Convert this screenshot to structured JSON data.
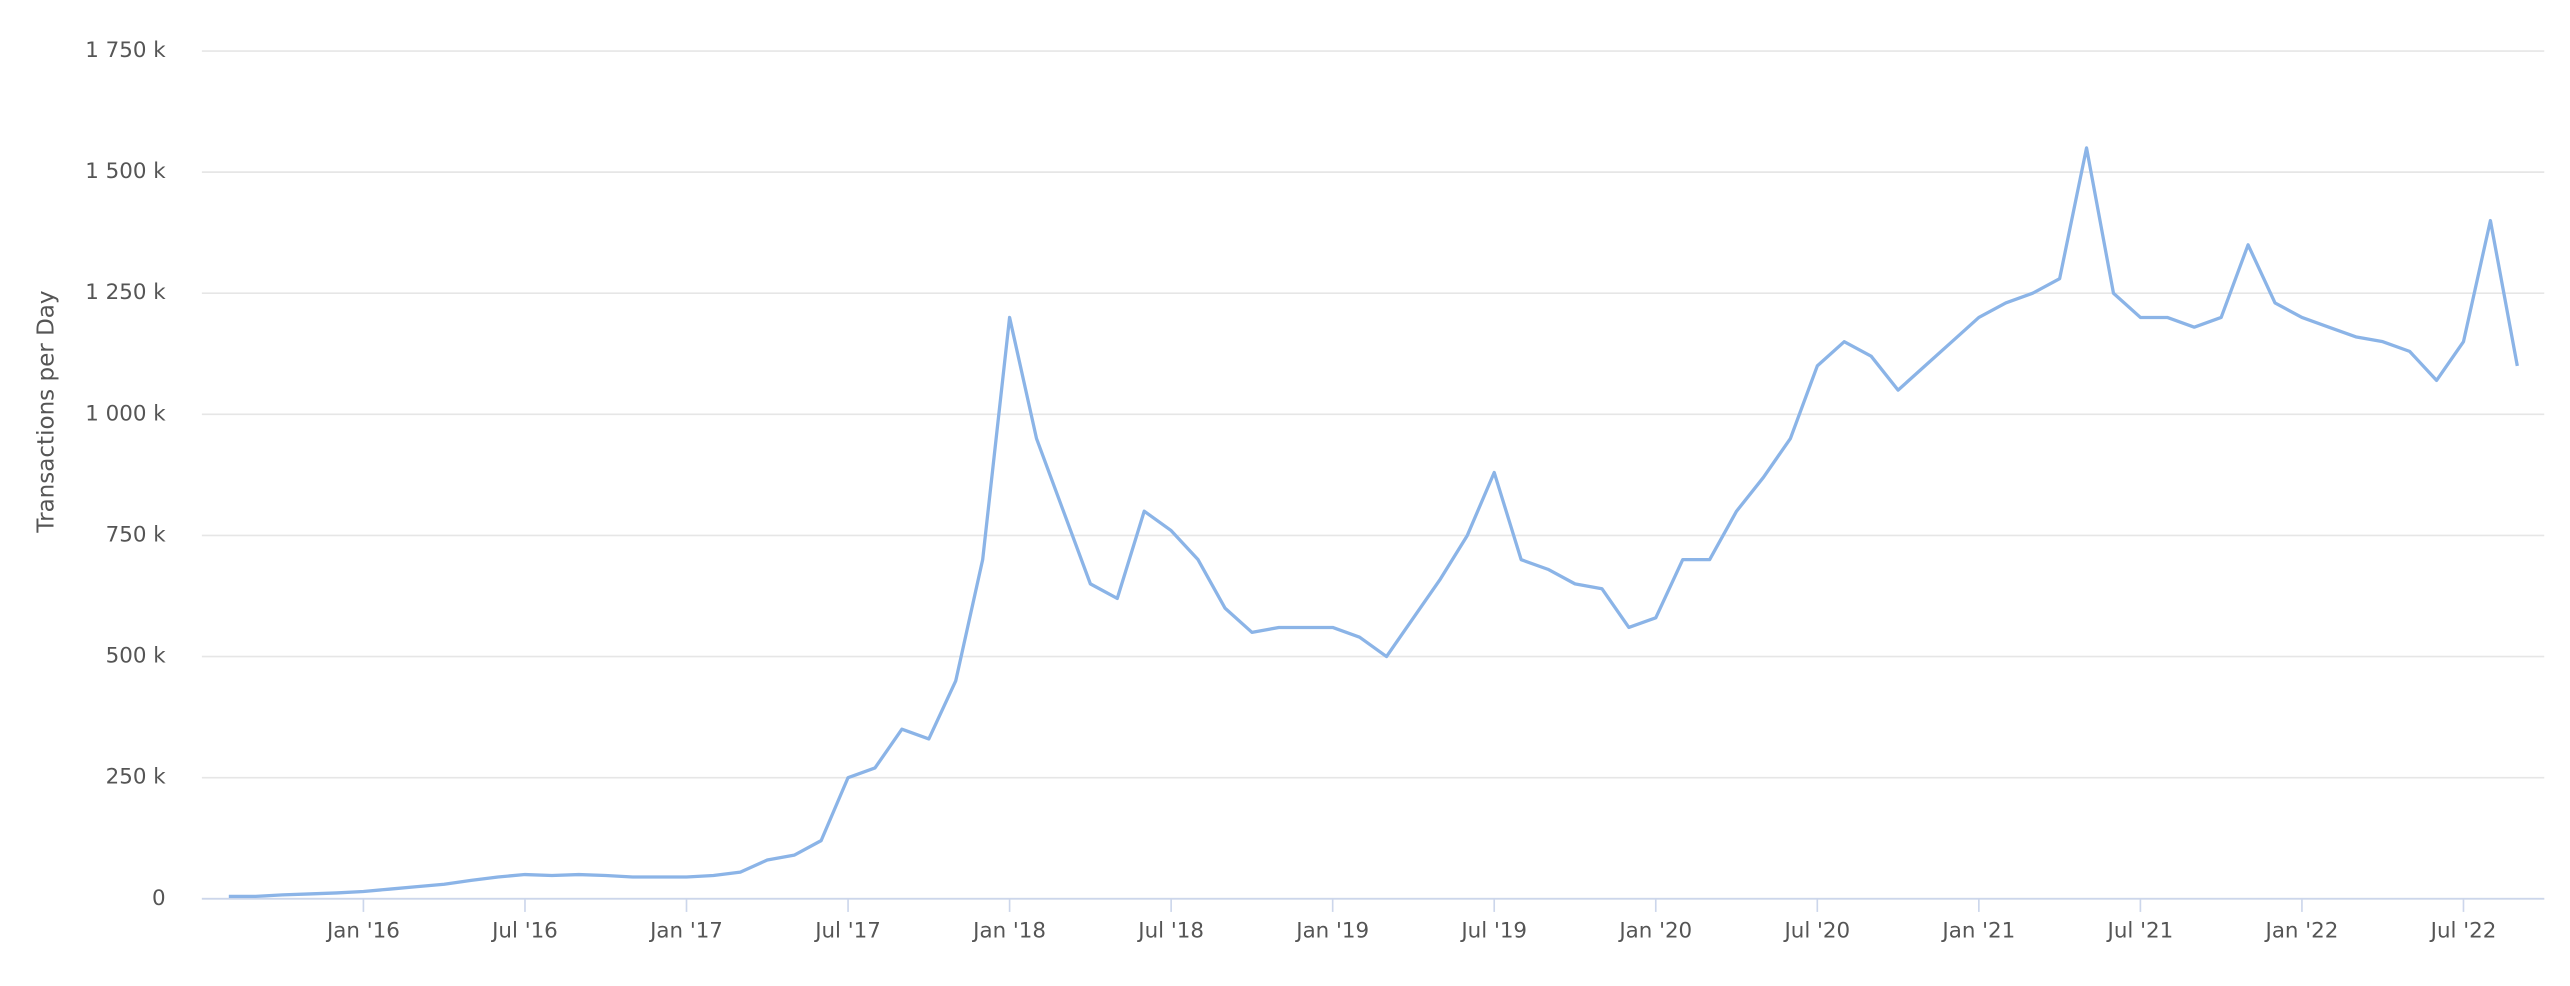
{
  "chart_data": {
    "type": "line",
    "y_axis_label": "Transactions per Day",
    "x": [
      "2015-08",
      "2015-09",
      "2015-10",
      "2015-11",
      "2015-12",
      "2016-01",
      "2016-02",
      "2016-03",
      "2016-04",
      "2016-05",
      "2016-06",
      "2016-07",
      "2016-08",
      "2016-09",
      "2016-10",
      "2016-11",
      "2016-12",
      "2017-01",
      "2017-02",
      "2017-03",
      "2017-04",
      "2017-05",
      "2017-06",
      "2017-07",
      "2017-08",
      "2017-09",
      "2017-10",
      "2017-11",
      "2017-12",
      "2018-01",
      "2018-02",
      "2018-03",
      "2018-04",
      "2018-05",
      "2018-06",
      "2018-07",
      "2018-08",
      "2018-09",
      "2018-10",
      "2018-11",
      "2018-12",
      "2019-01",
      "2019-02",
      "2019-03",
      "2019-04",
      "2019-05",
      "2019-06",
      "2019-07",
      "2019-08",
      "2019-09",
      "2019-10",
      "2019-11",
      "2019-12",
      "2020-01",
      "2020-02",
      "2020-03",
      "2020-04",
      "2020-05",
      "2020-06",
      "2020-07",
      "2020-08",
      "2020-09",
      "2020-10",
      "2020-11",
      "2020-12",
      "2021-01",
      "2021-02",
      "2021-03",
      "2021-04",
      "2021-05",
      "2021-06",
      "2021-07",
      "2021-08",
      "2021-09",
      "2021-10",
      "2021-11",
      "2021-12",
      "2022-01",
      "2022-02",
      "2022-03",
      "2022-04",
      "2022-05",
      "2022-06",
      "2022-07",
      "2022-08",
      "2022-09"
    ],
    "series": [
      {
        "name": "Transactions per Day",
        "color": "#8bb4e7",
        "values": [
          5000,
          5000,
          8000,
          10000,
          12000,
          15000,
          20000,
          25000,
          30000,
          38000,
          45000,
          50000,
          48000,
          50000,
          48000,
          45000,
          45000,
          45000,
          48000,
          55000,
          80000,
          90000,
          120000,
          250000,
          270000,
          350000,
          330000,
          450000,
          700000,
          1200000,
          950000,
          800000,
          650000,
          620000,
          800000,
          760000,
          700000,
          600000,
          550000,
          560000,
          560000,
          560000,
          540000,
          500000,
          580000,
          660000,
          750000,
          880000,
          700000,
          680000,
          650000,
          640000,
          560000,
          580000,
          700000,
          700000,
          800000,
          870000,
          950000,
          1100000,
          1150000,
          1120000,
          1050000,
          1100000,
          1150000,
          1200000,
          1230000,
          1250000,
          1280000,
          1550000,
          1250000,
          1200000,
          1200000,
          1180000,
          1200000,
          1350000,
          1230000,
          1200000,
          1180000,
          1160000,
          1150000,
          1130000,
          1070000,
          1150000,
          1400000,
          1100000
        ]
      }
    ],
    "xlim": [
      "2015-07",
      "2022-10"
    ],
    "xticks": [
      {
        "value": "2016-01",
        "label": "Jan '16"
      },
      {
        "value": "2016-07",
        "label": "Jul '16"
      },
      {
        "value": "2017-01",
        "label": "Jan '17"
      },
      {
        "value": "2017-07",
        "label": "Jul '17"
      },
      {
        "value": "2018-01",
        "label": "Jan '18"
      },
      {
        "value": "2018-07",
        "label": "Jul '18"
      },
      {
        "value": "2019-01",
        "label": "Jan '19"
      },
      {
        "value": "2019-07",
        "label": "Jul '19"
      },
      {
        "value": "2020-01",
        "label": "Jan '20"
      },
      {
        "value": "2020-07",
        "label": "Jul '20"
      },
      {
        "value": "2021-01",
        "label": "Jan '21"
      },
      {
        "value": "2021-07",
        "label": "Jul '21"
      },
      {
        "value": "2022-01",
        "label": "Jan '22"
      },
      {
        "value": "2022-07",
        "label": "Jul '22"
      }
    ],
    "ylim": [
      0,
      1750000
    ],
    "yticks": [
      0,
      {
        "value": 250000,
        "label": "250 k"
      },
      {
        "value": 500000,
        "label": "500 k"
      },
      {
        "value": 750000,
        "label": "750 k"
      },
      {
        "value": 1000000,
        "label": "1 000 k"
      },
      {
        "value": 1250000,
        "label": "1 250 k"
      },
      {
        "value": 1500000,
        "label": "1 500 k"
      },
      {
        "value": 1750000,
        "label": "1 750 k"
      }
    ],
    "grid": true
  }
}
